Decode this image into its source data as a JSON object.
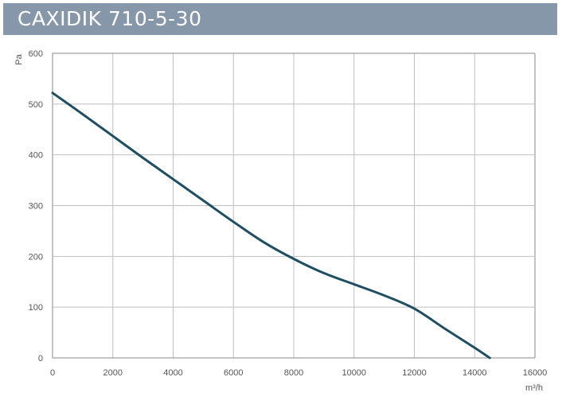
{
  "header": {
    "title": "CAXIDIK 710-5-30"
  },
  "colors": {
    "title_bg": "#8797aa",
    "curve": "#1f4e63",
    "grid": "#bfbfbf",
    "frame": "#888888"
  },
  "chart_data": {
    "type": "line",
    "title": "CAXIDIK 710-5-30",
    "xlabel": "m³/h",
    "ylabel": "Pa",
    "xlim": [
      0,
      16000
    ],
    "ylim": [
      0,
      600
    ],
    "grid": true,
    "x_ticks": [
      "0",
      "2000",
      "4000",
      "6000",
      "8000",
      "10000",
      "12000",
      "14000",
      "16000"
    ],
    "y_ticks": [
      "0",
      "100",
      "200",
      "300",
      "400",
      "500",
      "600"
    ],
    "series": [
      {
        "x": [
          0,
          1000,
          2000,
          3000,
          4000,
          5000,
          6000,
          7000,
          8000,
          9000,
          10000,
          11000,
          12000,
          13000,
          14000,
          14500
        ],
        "y": [
          522,
          480,
          437,
          394,
          352,
          310,
          268,
          228,
          195,
          167,
          145,
          123,
          97,
          58,
          20,
          0
        ]
      }
    ]
  }
}
